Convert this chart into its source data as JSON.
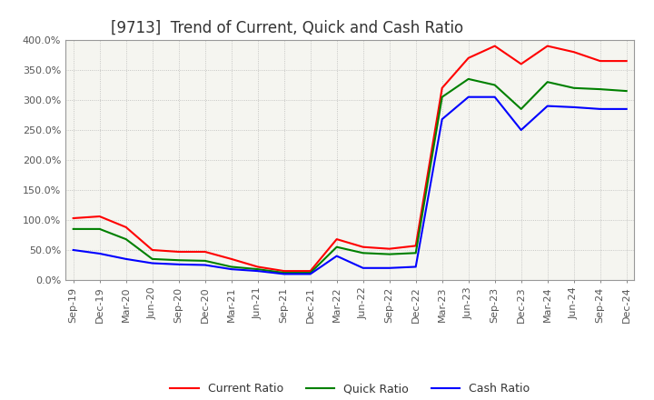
{
  "title": "[9713]  Trend of Current, Quick and Cash Ratio",
  "x_labels": [
    "Sep-19",
    "Dec-19",
    "Mar-20",
    "Jun-20",
    "Sep-20",
    "Dec-20",
    "Mar-21",
    "Jun-21",
    "Sep-21",
    "Dec-21",
    "Mar-22",
    "Jun-22",
    "Sep-22",
    "Dec-22",
    "Mar-23",
    "Jun-23",
    "Sep-23",
    "Dec-23",
    "Mar-24",
    "Jun-24",
    "Sep-24",
    "Dec-24"
  ],
  "current_ratio": [
    103,
    106,
    88,
    50,
    47,
    47,
    35,
    22,
    15,
    15,
    68,
    55,
    52,
    57,
    320,
    370,
    390,
    360,
    390,
    380,
    365,
    365
  ],
  "quick_ratio": [
    85,
    85,
    68,
    35,
    33,
    32,
    22,
    18,
    12,
    12,
    55,
    45,
    43,
    45,
    305,
    335,
    325,
    285,
    330,
    320,
    318,
    315
  ],
  "cash_ratio": [
    50,
    44,
    35,
    28,
    26,
    25,
    18,
    15,
    10,
    10,
    40,
    20,
    20,
    22,
    268,
    305,
    305,
    250,
    290,
    288,
    285,
    285
  ],
  "ylim": [
    0,
    400
  ],
  "yticks": [
    0,
    50,
    100,
    150,
    200,
    250,
    300,
    350,
    400
  ],
  "current_color": "#ff0000",
  "quick_color": "#008000",
  "cash_color": "#0000ff",
  "bg_color": "#ffffff",
  "plot_bg_color": "#f5f5f0",
  "grid_color": "#aaaaaa",
  "title_fontsize": 12,
  "tick_fontsize": 8,
  "legend_fontsize": 9
}
